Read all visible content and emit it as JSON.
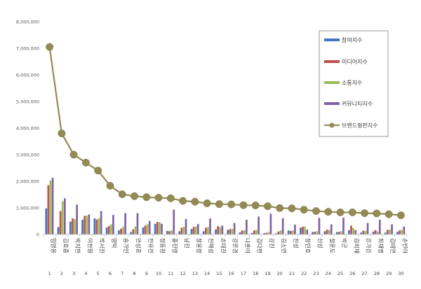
{
  "chart_data": {
    "type": "bar",
    "title": "",
    "xlabel": "",
    "ylabel": "",
    "ylim": [
      0,
      8000000
    ],
    "yticks": [
      "0",
      "1,000,000",
      "2,000,000",
      "3,000,000",
      "4,000,000",
      "5,000,000",
      "6,000,000",
      "7,000,000",
      "8,000,000"
    ],
    "grid": false,
    "legend_position": "top-right",
    "categories": [
      "임영웅",
      "김호중",
      "박지현",
      "이찬원",
      "박서진",
      "영탁",
      "송가인",
      "안성훈",
      "전유진",
      "정동원",
      "홍진영",
      "남진",
      "장윤정",
      "진해성",
      "손태진",
      "강문경",
      "나훈아",
      "김다현",
      "강진",
      "김소연",
      "진성",
      "장민호",
      "신성",
      "설운도",
      "박군",
      "김희재",
      "은가은",
      "최재명",
      "김태연",
      "손빈아"
    ],
    "ranks": [
      "1",
      "2",
      "3",
      "4",
      "5",
      "6",
      "7",
      "8",
      "9",
      "10",
      "11",
      "12",
      "13",
      "14",
      "15",
      "16",
      "17",
      "18",
      "19",
      "20",
      "21",
      "22",
      "23",
      "24",
      "25",
      "26",
      "27",
      "28",
      "29",
      "30"
    ],
    "series": [
      {
        "name": "참여지수",
        "color": "#4472C4",
        "values": [
          980000,
          280000,
          480000,
          550000,
          600000,
          260000,
          150000,
          90000,
          260000,
          400000,
          130000,
          120000,
          200000,
          120000,
          190000,
          170000,
          80000,
          60000,
          50000,
          40000,
          150000,
          250000,
          90000,
          120000,
          90000,
          160000,
          70000,
          110000,
          70000,
          100000
        ]
      },
      {
        "name": "미디어지수",
        "color": "#C0504D",
        "values": [
          1850000,
          880000,
          600000,
          700000,
          560000,
          320000,
          220000,
          190000,
          330000,
          470000,
          120000,
          250000,
          280000,
          250000,
          310000,
          200000,
          150000,
          150000,
          60000,
          110000,
          130000,
          290000,
          100000,
          180000,
          100000,
          330000,
          140000,
          160000,
          170000,
          150000
        ]
      },
      {
        "name": "소통지수",
        "color": "#9BBB59",
        "values": [
          2030000,
          1250000,
          580000,
          700000,
          610000,
          380000,
          300000,
          300000,
          380000,
          460000,
          150000,
          290000,
          300000,
          280000,
          270000,
          210000,
          150000,
          170000,
          90000,
          150000,
          150000,
          300000,
          120000,
          170000,
          120000,
          240000,
          130000,
          110000,
          180000,
          170000
        ]
      },
      {
        "name": "커뮤니티지수",
        "color": "#8064A2",
        "values": [
          2130000,
          1360000,
          1120000,
          750000,
          880000,
          730000,
          800000,
          800000,
          510000,
          400000,
          930000,
          580000,
          390000,
          600000,
          330000,
          430000,
          550000,
          670000,
          780000,
          610000,
          370000,
          180000,
          620000,
          380000,
          630000,
          160000,
          430000,
          550000,
          380000,
          300000
        ]
      },
      {
        "name": "브랜드평판지수",
        "color": "#948A54",
        "values": [
          7050000,
          3800000,
          3000000,
          2700000,
          2400000,
          1830000,
          1510000,
          1440000,
          1400000,
          1380000,
          1360000,
          1260000,
          1230000,
          1170000,
          1140000,
          1130000,
          1100000,
          1090000,
          1060000,
          990000,
          980000,
          930000,
          880000,
          850000,
          830000,
          830000,
          800000,
          790000,
          760000,
          720000
        ]
      }
    ]
  }
}
